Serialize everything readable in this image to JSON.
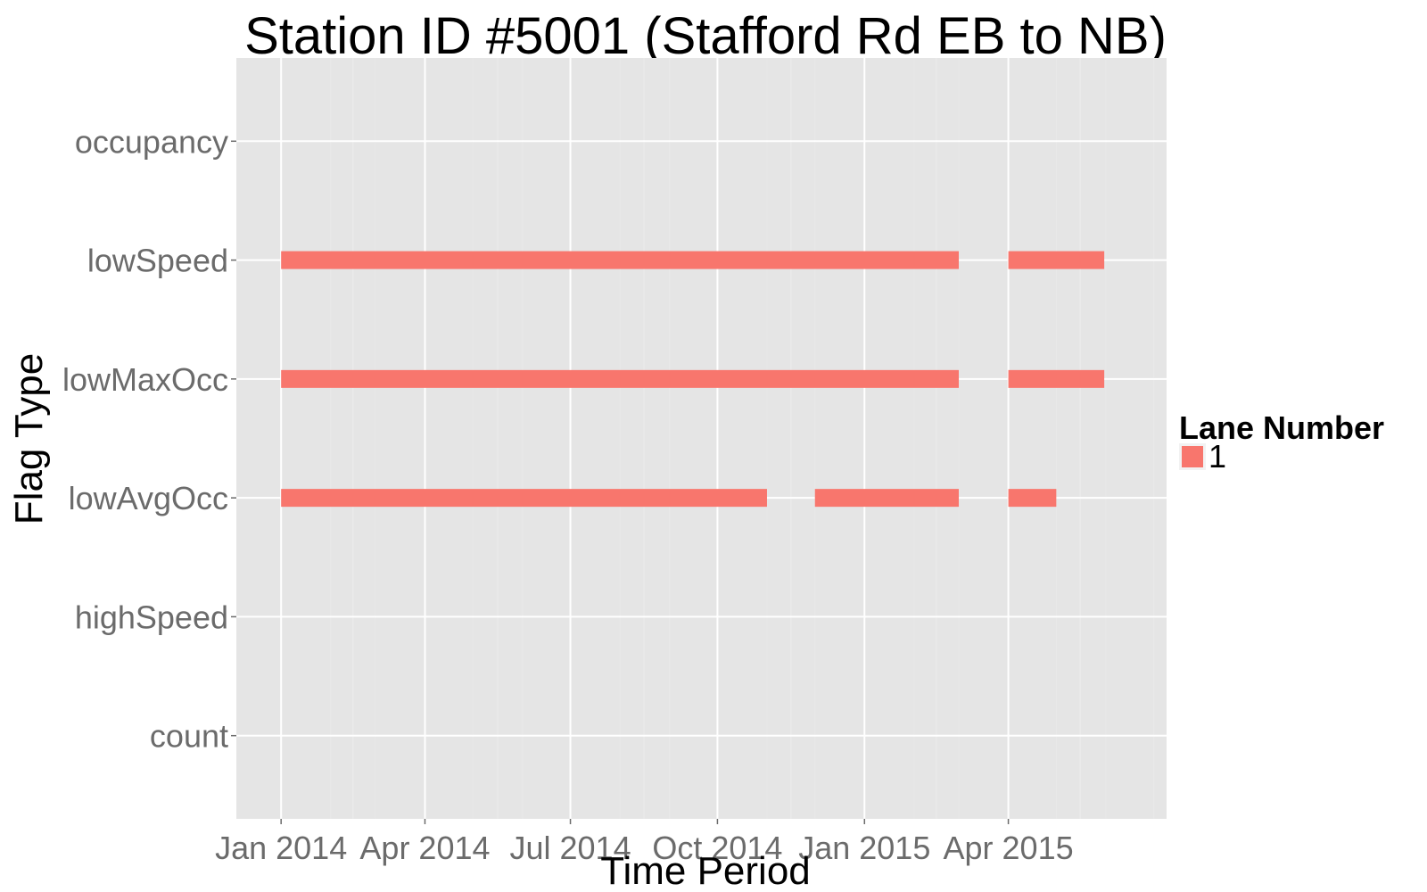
{
  "chart_data": {
    "type": "timeline",
    "title": "Station ID #5001 (Stafford Rd EB to NB)",
    "xlabel": "Time Period",
    "ylabel": "Flag Type",
    "xlim": [
      "2013-12-04",
      "2015-07-09"
    ],
    "x_ticks": [
      {
        "date": "2014-01-01",
        "label": "Jan 2014"
      },
      {
        "date": "2014-04-01",
        "label": "Apr 2014"
      },
      {
        "date": "2014-07-01",
        "label": "Jul 2014"
      },
      {
        "date": "2014-10-01",
        "label": "Oct 2014"
      },
      {
        "date": "2015-01-01",
        "label": "Jan 2015"
      },
      {
        "date": "2015-04-01",
        "label": "Apr 2015"
      }
    ],
    "categories": [
      "occupancy",
      "lowSpeed",
      "lowMaxOcc",
      "lowAvgOcc",
      "highSpeed",
      "count"
    ],
    "series": [
      {
        "name": "1",
        "color": "#F8766D",
        "segments": [
          {
            "flag": "lowSpeed",
            "start": "2014-01-01",
            "end": "2015-03-01"
          },
          {
            "flag": "lowSpeed",
            "start": "2015-04-01",
            "end": "2015-05-31"
          },
          {
            "flag": "lowMaxOcc",
            "start": "2014-01-01",
            "end": "2015-03-01"
          },
          {
            "flag": "lowMaxOcc",
            "start": "2015-04-01",
            "end": "2015-05-31"
          },
          {
            "flag": "lowAvgOcc",
            "start": "2014-01-01",
            "end": "2014-11-01"
          },
          {
            "flag": "lowAvgOcc",
            "start": "2014-12-01",
            "end": "2015-03-01"
          },
          {
            "flag": "lowAvgOcc",
            "start": "2015-04-01",
            "end": "2015-05-01"
          }
        ]
      }
    ],
    "legend": {
      "title": "Lane Number",
      "position": "right",
      "entries": [
        "1"
      ]
    },
    "grid": true,
    "panel_color": "#E5E5E5",
    "grid_color": "#FFFFFF"
  }
}
